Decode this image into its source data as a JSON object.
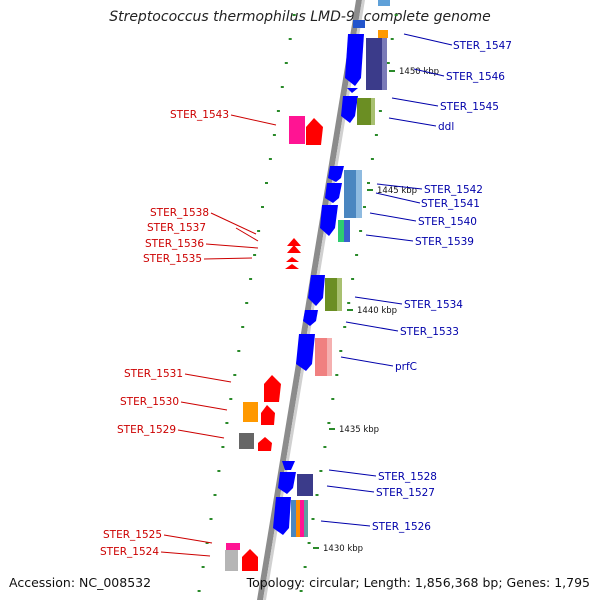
{
  "title": "Streptococcus thermophilus LMD-9, complete genome",
  "footer": {
    "accession": "Accession: NC_008532",
    "topology": "Topology: circular; Length: 1,856,368 bp; Genes: 1,795"
  },
  "colors": {
    "backbone": "#8c8c8c",
    "tick": "#2a8a2a",
    "left_label": "#cc0000",
    "right_label": "#0000aa",
    "reverse_arrow": "#ff0000",
    "forward_arrow": "#0000ff"
  },
  "scale_labels": [
    "1450 kbp",
    "1445 kbp",
    "1440 kbp",
    "1435 kbp",
    "1430 kbp"
  ],
  "left_genes": [
    "STER_1543",
    "STER_1538",
    "STER_1537",
    "STER_1536",
    "STER_1535",
    "STER_1531",
    "STER_1530",
    "STER_1529",
    "STER_1525",
    "STER_1524"
  ],
  "right_genes": [
    "STER_1547",
    "STER_1546",
    "STER_1545",
    "ddl",
    "STER_1542",
    "STER_1541",
    "STER_1540",
    "STER_1539",
    "STER_1534",
    "STER_1533",
    "prfC",
    "STER_1528",
    "STER_1527",
    "STER_1526"
  ]
}
